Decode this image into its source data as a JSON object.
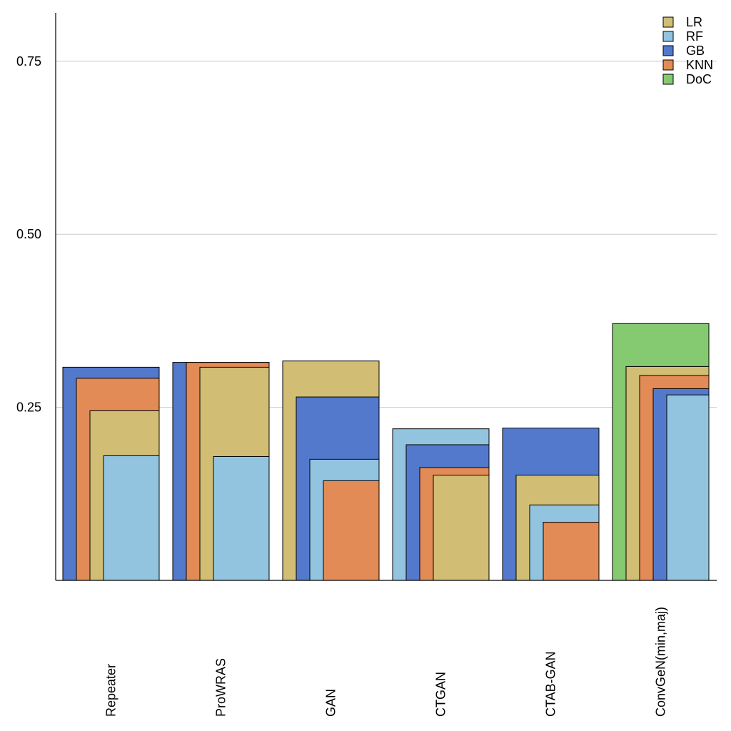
{
  "chart_data": {
    "type": "bar",
    "subtype": "overlapping-nested-bars",
    "categories": [
      "Repeater",
      "ProWRAS",
      "GAN",
      "CTGAN",
      "CTAB-GAN",
      "ConvGeN(min,maj)"
    ],
    "ylim": [
      0,
      0.82
    ],
    "yticks": [
      0.25,
      0.5,
      0.75
    ],
    "ytick_labels": [
      "0.25",
      "0.50",
      "0.75"
    ],
    "grid": "horizontal",
    "legend_position": "top-right",
    "legend": [
      {
        "name": "LR",
        "color": "#d1bd74"
      },
      {
        "name": "RF",
        "color": "#92c4e0"
      },
      {
        "name": "GB",
        "color": "#5379cd"
      },
      {
        "name": "KNN",
        "color": "#e28b56"
      },
      {
        "name": "DoC",
        "color": "#85c971"
      }
    ],
    "series": [
      {
        "name": "LR",
        "values": [
          0.245,
          0.308,
          0.317,
          0.152,
          0.152,
          0.309
        ]
      },
      {
        "name": "RF",
        "values": [
          0.18,
          0.179,
          0.175,
          0.219,
          0.109,
          0.268
        ]
      },
      {
        "name": "GB",
        "values": [
          0.308,
          0.315,
          0.265,
          0.196,
          0.22,
          0.277
        ]
      },
      {
        "name": "KNN",
        "values": [
          0.292,
          0.315,
          0.144,
          0.163,
          0.084,
          0.296
        ]
      },
      {
        "name": "DoC",
        "values": [
          null,
          null,
          null,
          null,
          null,
          0.371
        ]
      }
    ]
  }
}
